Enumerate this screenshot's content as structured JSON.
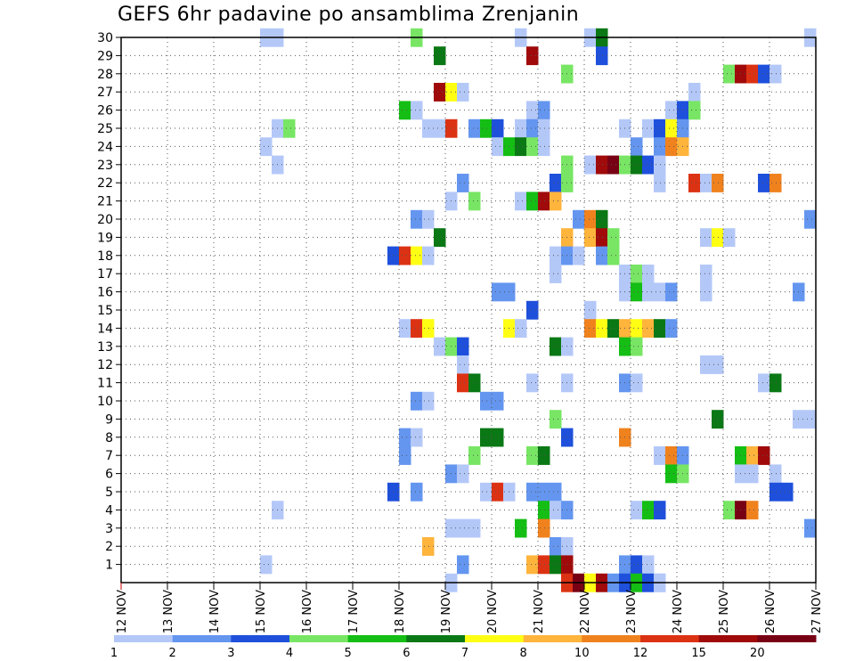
{
  "chart_data": {
    "type": "heatmap",
    "title": "GEFS 6hr padavine po ansamblima Zrenjanin",
    "xlabel": "",
    "ylabel": "",
    "x_ticks": [
      "12 NOV",
      "13 NOV",
      "14 NOV",
      "15 NOV",
      "16 NOV",
      "17 NOV",
      "18 NOV",
      "19 NOV",
      "20 NOV",
      "21 NOV",
      "22 NOV",
      "23 NOV",
      "24 NOV",
      "25 NOV",
      "26 NOV",
      "27 NOV"
    ],
    "x_range": [
      0,
      15
    ],
    "y_ticks": [
      1,
      2,
      3,
      4,
      5,
      6,
      7,
      8,
      9,
      10,
      11,
      12,
      13,
      14,
      15,
      16,
      17,
      18,
      19,
      20,
      21,
      22,
      23,
      24,
      25,
      26,
      27,
      28,
      29,
      30
    ],
    "y_range": [
      0,
      30
    ],
    "grid": true,
    "step_days": 0.25,
    "colorbar": {
      "labels": [
        "1",
        "2",
        "3",
        "4",
        "5",
        "6",
        "7",
        "8",
        "10",
        "12",
        "15",
        "20"
      ],
      "colors": [
        "#b4c8f8",
        "#6496f0",
        "#1e50dc",
        "#78e664",
        "#14be14",
        "#0a7814",
        "#ffff14",
        "#ffb43c",
        "#f0821e",
        "#dc3214",
        "#a00a0a",
        "#780014"
      ]
    },
    "cells": [
      [
        3,
        30,
        0
      ],
      [
        3.25,
        30,
        0
      ],
      [
        6.25,
        30,
        3
      ],
      [
        8.5,
        30,
        0
      ],
      [
        10,
        30,
        0
      ],
      [
        10.25,
        30,
        5
      ],
      [
        14.75,
        30,
        0
      ],
      [
        6.75,
        29,
        5
      ],
      [
        8.75,
        29,
        10
      ],
      [
        10.25,
        29,
        2
      ],
      [
        9.5,
        28,
        3
      ],
      [
        13,
        28,
        3
      ],
      [
        13.25,
        28,
        10
      ],
      [
        13.5,
        28,
        9
      ],
      [
        13.75,
        28,
        2
      ],
      [
        14,
        28,
        0
      ],
      [
        6.75,
        27,
        10
      ],
      [
        7,
        27,
        6
      ],
      [
        7.25,
        27,
        0
      ],
      [
        12.25,
        27,
        0
      ],
      [
        6,
        26,
        4
      ],
      [
        6.25,
        26,
        0
      ],
      [
        8.75,
        26,
        0
      ],
      [
        9,
        26,
        1
      ],
      [
        11.75,
        26,
        0
      ],
      [
        12,
        26,
        2
      ],
      [
        12.25,
        26,
        3
      ],
      [
        3.25,
        25,
        0
      ],
      [
        3.5,
        25,
        3
      ],
      [
        6.5,
        25,
        0
      ],
      [
        6.75,
        25,
        0
      ],
      [
        7,
        25,
        9
      ],
      [
        7.5,
        25,
        1
      ],
      [
        7.75,
        25,
        4
      ],
      [
        8,
        25,
        2
      ],
      [
        8.5,
        25,
        0
      ],
      [
        8.75,
        25,
        1
      ],
      [
        9,
        25,
        0
      ],
      [
        10.75,
        25,
        0
      ],
      [
        11.25,
        25,
        0
      ],
      [
        11.5,
        25,
        2
      ],
      [
        11.75,
        25,
        6
      ],
      [
        12,
        25,
        1
      ],
      [
        3,
        24,
        0
      ],
      [
        8,
        24,
        0
      ],
      [
        8.25,
        24,
        4
      ],
      [
        8.5,
        24,
        5
      ],
      [
        8.75,
        24,
        3
      ],
      [
        9,
        24,
        0
      ],
      [
        11,
        24,
        1
      ],
      [
        11.5,
        24,
        1
      ],
      [
        11.75,
        24,
        8
      ],
      [
        12,
        24,
        7
      ],
      [
        3.25,
        23,
        0
      ],
      [
        9.5,
        23,
        3
      ],
      [
        10,
        23,
        0
      ],
      [
        10.25,
        23,
        10
      ],
      [
        10.5,
        23,
        11
      ],
      [
        10.75,
        23,
        3
      ],
      [
        11,
        23,
        5
      ],
      [
        11.25,
        23,
        2
      ],
      [
        11.5,
        23,
        0
      ],
      [
        7.25,
        22,
        1
      ],
      [
        9.25,
        22,
        2
      ],
      [
        9.5,
        22,
        3
      ],
      [
        11.5,
        22,
        0
      ],
      [
        12.25,
        22,
        9
      ],
      [
        12.5,
        22,
        0
      ],
      [
        12.75,
        22,
        8
      ],
      [
        13.75,
        22,
        2
      ],
      [
        14,
        22,
        8
      ],
      [
        7,
        21,
        0
      ],
      [
        7.5,
        21,
        3
      ],
      [
        8.5,
        21,
        0
      ],
      [
        8.75,
        21,
        4
      ],
      [
        9,
        21,
        10
      ],
      [
        9.25,
        21,
        7
      ],
      [
        6.25,
        20,
        1
      ],
      [
        6.5,
        20,
        0
      ],
      [
        9.75,
        20,
        1
      ],
      [
        10,
        20,
        8
      ],
      [
        10.25,
        20,
        5
      ],
      [
        14.75,
        20,
        1
      ],
      [
        6.75,
        19,
        5
      ],
      [
        9.5,
        19,
        7
      ],
      [
        10,
        19,
        7
      ],
      [
        10.25,
        19,
        10
      ],
      [
        10.5,
        19,
        3
      ],
      [
        12.5,
        19,
        0
      ],
      [
        12.75,
        19,
        6
      ],
      [
        13,
        19,
        0
      ],
      [
        5.75,
        18,
        2
      ],
      [
        6,
        18,
        9
      ],
      [
        6.25,
        18,
        6
      ],
      [
        6.5,
        18,
        0
      ],
      [
        9.25,
        18,
        0
      ],
      [
        9.5,
        18,
        1
      ],
      [
        9.75,
        18,
        0
      ],
      [
        10.25,
        18,
        1
      ],
      [
        10.5,
        18,
        3
      ],
      [
        9.25,
        17,
        0
      ],
      [
        10.75,
        17,
        0
      ],
      [
        11,
        17,
        3
      ],
      [
        11.25,
        17,
        0
      ],
      [
        12.5,
        17,
        0
      ],
      [
        8,
        16,
        1
      ],
      [
        8.25,
        16,
        1
      ],
      [
        10.75,
        16,
        0
      ],
      [
        11,
        16,
        4
      ],
      [
        11.25,
        16,
        0
      ],
      [
        11.5,
        16,
        0
      ],
      [
        11.75,
        16,
        1
      ],
      [
        12.5,
        16,
        0
      ],
      [
        14.5,
        16,
        1
      ],
      [
        8.75,
        15,
        2
      ],
      [
        10,
        15,
        0
      ],
      [
        6,
        14,
        0
      ],
      [
        6.25,
        14,
        9
      ],
      [
        6.5,
        14,
        6
      ],
      [
        8.25,
        14,
        6
      ],
      [
        8.5,
        14,
        0
      ],
      [
        10,
        14,
        8
      ],
      [
        10.25,
        14,
        6
      ],
      [
        10.5,
        14,
        5
      ],
      [
        10.75,
        14,
        7
      ],
      [
        11,
        14,
        6
      ],
      [
        11.25,
        14,
        7
      ],
      [
        11.5,
        14,
        5
      ],
      [
        11.75,
        14,
        1
      ],
      [
        6.75,
        13,
        0
      ],
      [
        7,
        13,
        3
      ],
      [
        7.25,
        13,
        2
      ],
      [
        9.25,
        13,
        5
      ],
      [
        9.5,
        13,
        0
      ],
      [
        10.75,
        13,
        4
      ],
      [
        11,
        13,
        3
      ],
      [
        7.25,
        12,
        0
      ],
      [
        12.5,
        12,
        0
      ],
      [
        12.75,
        12,
        0
      ],
      [
        7.25,
        11,
        9
      ],
      [
        7.5,
        11,
        5
      ],
      [
        8.75,
        11,
        0
      ],
      [
        9.5,
        11,
        0
      ],
      [
        10.75,
        11,
        1
      ],
      [
        11,
        11,
        0
      ],
      [
        13.75,
        11,
        0
      ],
      [
        14,
        11,
        5
      ],
      [
        6.25,
        10,
        1
      ],
      [
        6.5,
        10,
        0
      ],
      [
        7.75,
        10,
        1
      ],
      [
        8,
        10,
        1
      ],
      [
        9.25,
        9,
        3
      ],
      [
        12.75,
        9,
        5
      ],
      [
        14.5,
        9,
        0
      ],
      [
        14.75,
        9,
        0
      ],
      [
        6,
        8,
        1
      ],
      [
        6.25,
        8,
        0
      ],
      [
        7.75,
        8,
        5
      ],
      [
        8,
        8,
        5
      ],
      [
        9.5,
        8,
        2
      ],
      [
        10.75,
        8,
        8
      ],
      [
        6,
        7,
        1
      ],
      [
        7.5,
        7,
        3
      ],
      [
        8.75,
        7,
        3
      ],
      [
        9,
        7,
        5
      ],
      [
        11.5,
        7,
        0
      ],
      [
        11.75,
        7,
        8
      ],
      [
        12,
        7,
        1
      ],
      [
        13.25,
        7,
        4
      ],
      [
        13.5,
        7,
        7
      ],
      [
        13.75,
        7,
        10
      ],
      [
        7,
        6,
        1
      ],
      [
        7.25,
        6,
        0
      ],
      [
        11.75,
        6,
        4
      ],
      [
        12,
        6,
        3
      ],
      [
        13.25,
        6,
        0
      ],
      [
        13.5,
        6,
        0
      ],
      [
        14,
        6,
        0
      ],
      [
        5.75,
        5,
        2
      ],
      [
        6.25,
        5,
        1
      ],
      [
        7.75,
        5,
        0
      ],
      [
        8,
        5,
        9
      ],
      [
        8.25,
        5,
        0
      ],
      [
        8.75,
        5,
        1
      ],
      [
        9,
        5,
        1
      ],
      [
        9.25,
        5,
        1
      ],
      [
        14,
        5,
        2
      ],
      [
        14.25,
        5,
        2
      ],
      [
        3.25,
        4,
        0
      ],
      [
        9,
        4,
        4
      ],
      [
        9.25,
        4,
        0
      ],
      [
        9.5,
        4,
        1
      ],
      [
        11,
        4,
        0
      ],
      [
        11.25,
        4,
        4
      ],
      [
        11.5,
        4,
        2
      ],
      [
        13,
        4,
        3
      ],
      [
        13.25,
        4,
        11
      ],
      [
        13.5,
        4,
        8
      ],
      [
        7,
        3,
        0
      ],
      [
        7.25,
        3,
        0
      ],
      [
        7.5,
        3,
        0
      ],
      [
        8.5,
        3,
        4
      ],
      [
        9,
        3,
        8
      ],
      [
        14.75,
        3,
        1
      ],
      [
        6.5,
        2,
        7
      ],
      [
        9.25,
        2,
        1
      ],
      [
        9.5,
        2,
        0
      ],
      [
        3,
        1,
        0
      ],
      [
        7.25,
        1,
        1
      ],
      [
        8.75,
        1,
        7
      ],
      [
        9,
        1,
        9
      ],
      [
        9.25,
        1,
        5
      ],
      [
        9.5,
        1,
        10
      ],
      [
        10.75,
        1,
        1
      ],
      [
        11,
        1,
        2
      ],
      [
        11.25,
        1,
        0
      ],
      [
        9.5,
        0,
        9
      ],
      [
        9.75,
        0,
        11
      ],
      [
        10,
        0,
        6
      ],
      [
        10.25,
        0,
        10
      ],
      [
        10.5,
        0,
        1
      ],
      [
        10.75,
        0,
        2
      ],
      [
        11,
        0,
        4
      ],
      [
        11.25,
        0,
        2
      ],
      [
        11.5,
        0,
        0
      ],
      [
        7,
        0,
        0
      ],
      [
        11.5,
        0,
        0
      ]
    ]
  }
}
